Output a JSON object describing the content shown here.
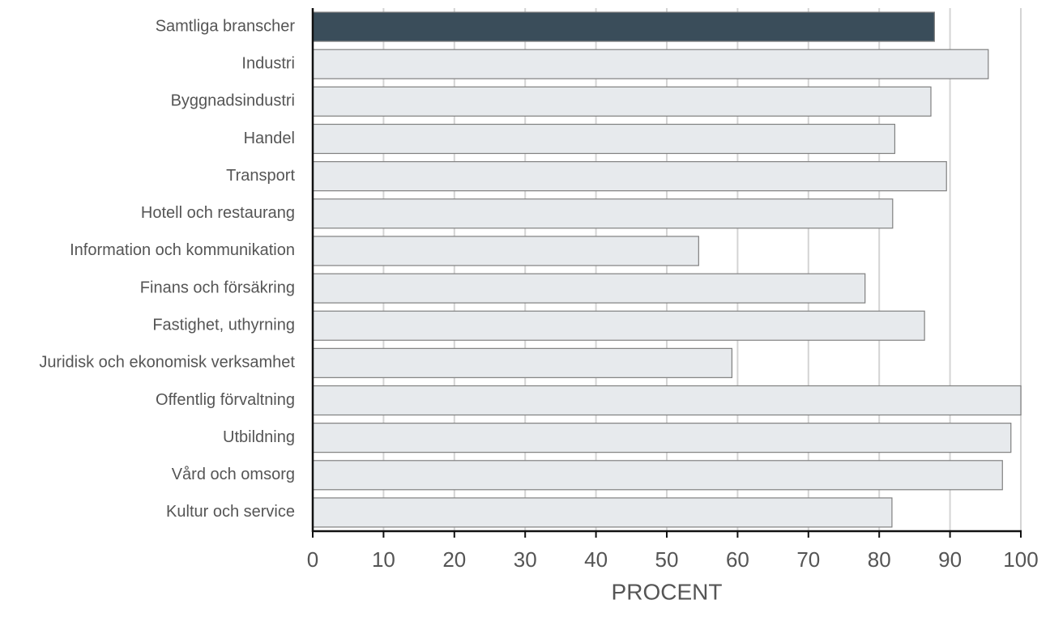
{
  "chart_data": {
    "type": "barh",
    "categories": [
      "Samtliga branscher",
      "Industri",
      "Byggnadsindustri",
      "Handel",
      "Transport",
      "Hotell och restaurang",
      "Information och kommunikation",
      "Finans och försäkring",
      "Fastighet, uthyrning",
      "Juridisk och ekonomisk verksamhet",
      "Offentlig förvaltning",
      "Utbildning",
      "Vård och omsorg",
      "Kultur och service"
    ],
    "values": [
      87.8,
      95.4,
      87.3,
      82.2,
      89.5,
      81.9,
      54.5,
      78,
      86.4,
      59.2,
      100,
      98.6,
      97.4,
      81.8
    ],
    "colors": [
      "#3a4d5a",
      "#e7eaed",
      "#e7eaed",
      "#e7eaed",
      "#e7eaed",
      "#e7eaed",
      "#e7eaed",
      "#e7eaed",
      "#e7eaed",
      "#e7eaed",
      "#e7eaed",
      "#e7eaed",
      "#e7eaed",
      "#e7eaed"
    ],
    "xlabel": "PROCENT",
    "xlim": [
      0,
      100
    ],
    "xticks": [
      0,
      10,
      20,
      30,
      40,
      50,
      60,
      70,
      80,
      90,
      100
    ],
    "grid": true
  }
}
